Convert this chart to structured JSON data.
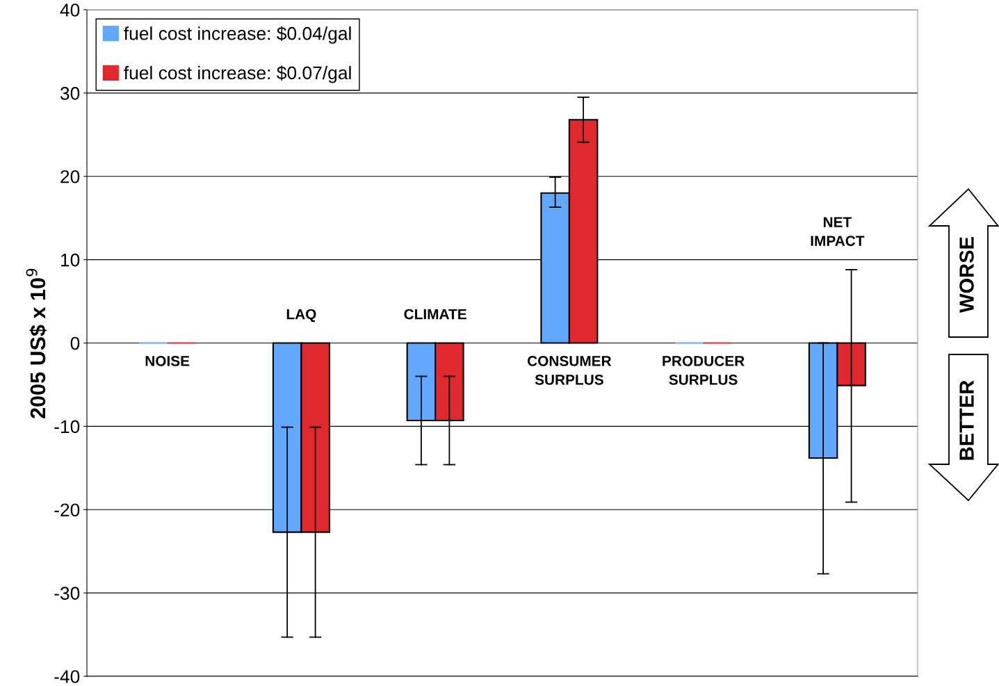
{
  "chart_data": {
    "type": "bar",
    "ylabel": "2005 US$ x 10$^{9}$",
    "categories": [
      "NOISE",
      "LAQ",
      "CLIMATE",
      "CONSUMER SURPLUS",
      "PRODUCER SURPLUS",
      "NET IMPACT"
    ],
    "series": [
      {
        "name": "fuel cost increase: $0.04/gal",
        "color": "#62a8ff",
        "values": [
          0,
          -22.7,
          -9.3,
          18.0,
          0,
          -13.8
        ],
        "errors": [
          null,
          [
            -35.3,
            -10.1
          ],
          [
            -14.6,
            -4.0
          ],
          [
            16.3,
            19.9
          ],
          null,
          [
            -27.7,
            0
          ]
        ]
      },
      {
        "name": "fuel cost increase: $0.07/gal",
        "color": "#e0282f",
        "values": [
          0,
          -22.7,
          -9.3,
          26.8,
          0,
          -5.1
        ],
        "errors": [
          null,
          [
            -35.3,
            -10.1
          ],
          [
            -14.6,
            -4.0
          ],
          [
            24.1,
            29.5
          ],
          null,
          [
            -19.1,
            8.8
          ]
        ]
      }
    ],
    "ylim": [
      -40,
      40
    ],
    "yticks": [
      -40,
      -30,
      -20,
      -10,
      0,
      10,
      20,
      30,
      40
    ],
    "grid": "y",
    "legend": "top left",
    "annotations": [
      "WORSE",
      "BETTER"
    ]
  }
}
